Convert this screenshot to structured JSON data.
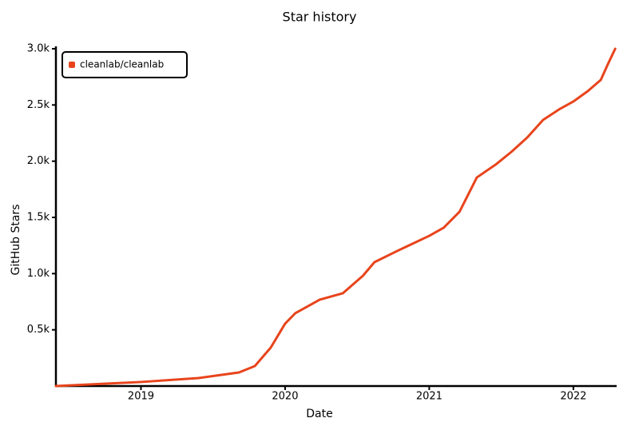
{
  "chart_data": {
    "type": "line",
    "title": "Star history",
    "x_label": "Date",
    "y_label": "GitHub Stars",
    "x": [
      2018.41,
      2019.0,
      2019.4,
      2019.68,
      2019.79,
      2019.9,
      2020.0,
      2020.07,
      2020.24,
      2020.4,
      2020.54,
      2020.62,
      2020.79,
      2021.0,
      2021.1,
      2021.21,
      2021.33,
      2021.46,
      2021.57,
      2021.68,
      2021.79,
      2021.9,
      2022.0,
      2022.1,
      2022.19,
      2022.24,
      2022.29
    ],
    "series": [
      {
        "name": "cleanlab/cleanlab",
        "color": "#e8441c",
        "values": [
          0,
          36,
          71,
          121,
          178,
          341,
          555,
          647,
          768,
          825,
          981,
          1102,
          1209,
          1336,
          1408,
          1550,
          1855,
          1969,
          2083,
          2211,
          2367,
          2460,
          2531,
          2623,
          2723,
          2865,
          3000
        ]
      }
    ],
    "xlim": [
      2018.41,
      2022.3
    ],
    "xticks": [
      2019,
      2020,
      2021,
      2022
    ],
    "ylim": [
      0,
      3000
    ],
    "yticks": [
      {
        "value": 500,
        "label": "0.5k"
      },
      {
        "value": 1000,
        "label": "1.0k"
      },
      {
        "value": 1500,
        "label": "1.5k"
      },
      {
        "value": 2000,
        "label": "2.0k"
      },
      {
        "value": 2500,
        "label": "2.5k"
      },
      {
        "value": 3000,
        "label": "3.0k"
      }
    ],
    "legend": "top-left"
  }
}
